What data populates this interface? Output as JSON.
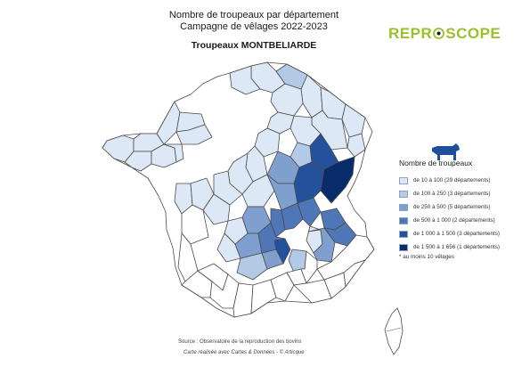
{
  "header": {
    "title_line1": "Nombre de troupeaux par département",
    "title_line2": "Campagne de vêlages 2022-2023",
    "subtitle": "Troupeaux MONTBELIARDE",
    "logo_text_left": "REPR",
    "logo_text_right": "SCOPE",
    "logo_color": "#9bbf2d"
  },
  "legend": {
    "title": "Nombre de troupeaux",
    "icon": "cow-icon",
    "items": [
      {
        "label": "de 10 à 100 (29 départements)",
        "color": "#dce8f5"
      },
      {
        "label": "de 100 à 250 (3 départements)",
        "color": "#b3cae6"
      },
      {
        "label": "de 250 à 500 (5 départements)",
        "color": "#7fa0cf"
      },
      {
        "label": "de 500 à 1 000 (2 départements)",
        "color": "#4f77b7"
      },
      {
        "label": "de 1 000 à 1 500 (3 départements)",
        "color": "#24519c"
      },
      {
        "label": "de 1 500 à 1 656 (1 départements)",
        "color": "#082b6b"
      }
    ],
    "note": "* au moins 10 vêlages"
  },
  "footer": {
    "source": "Source : Observatoire de la reproduction des bovins",
    "credit": "Carte réalisée avec Cartes & Données - © Articque"
  },
  "colors": {
    "empty": "#ffffff",
    "border": "#4a4a4a",
    "region_border": "#8fa2b8"
  }
}
